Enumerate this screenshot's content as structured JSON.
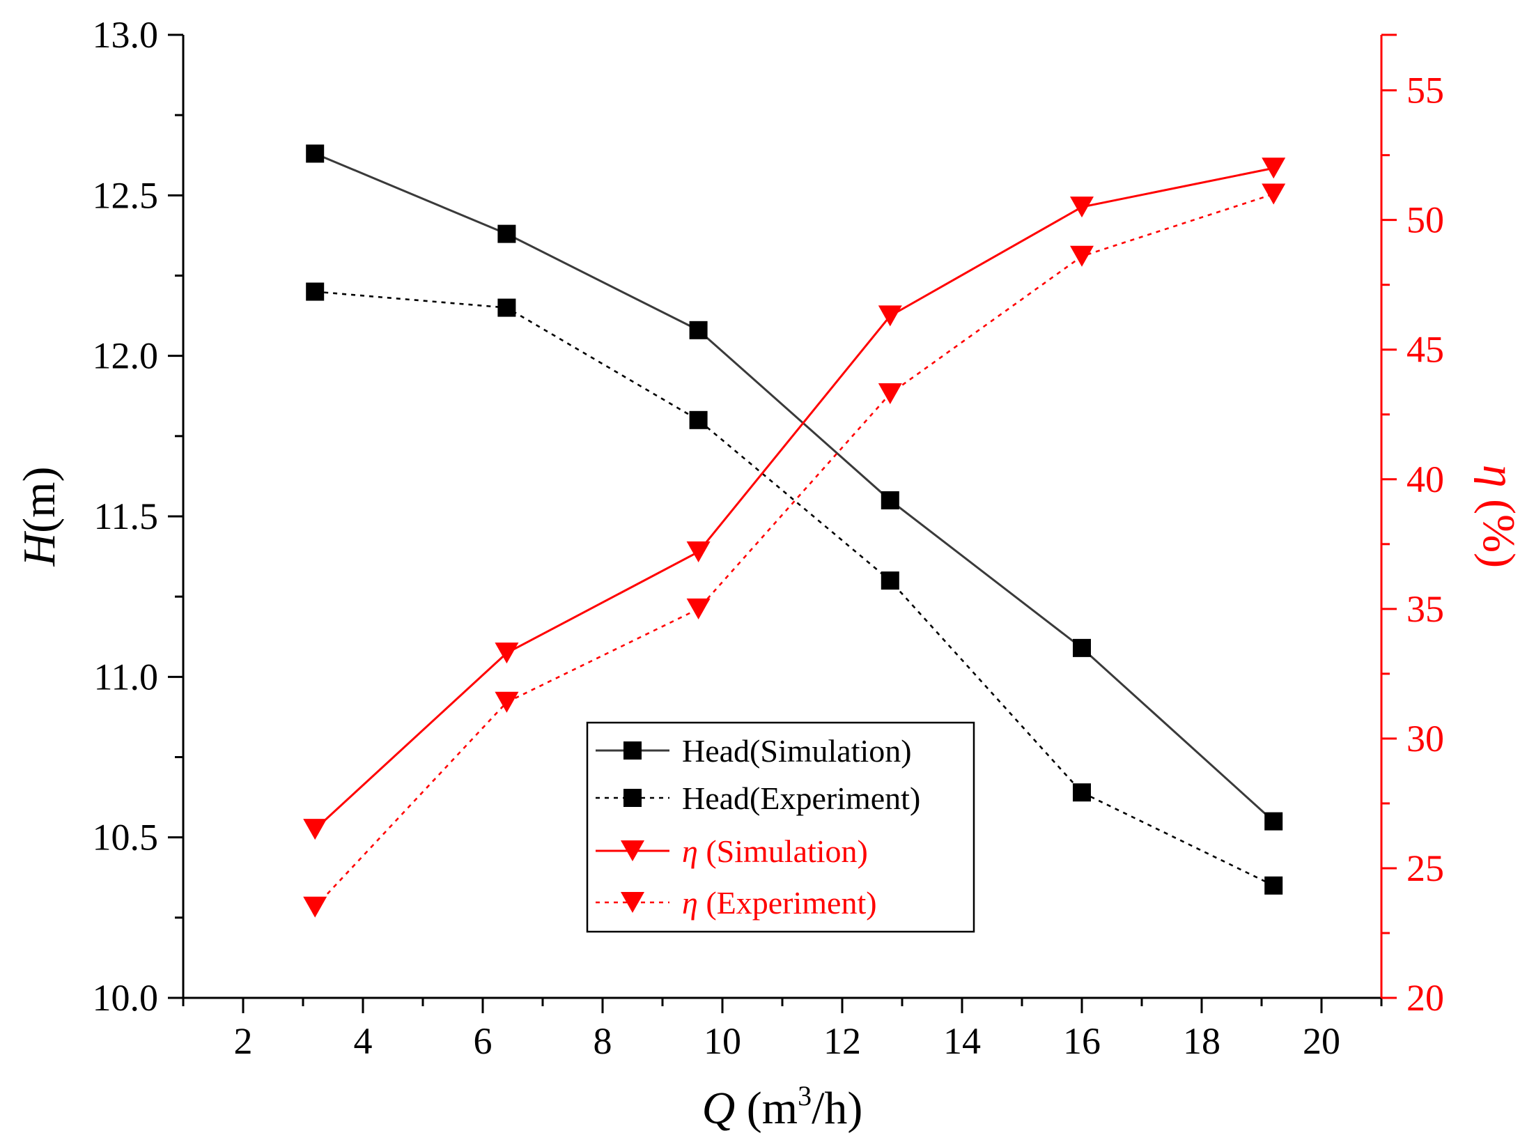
{
  "chart_data": {
    "type": "line",
    "x_label": {
      "prefix": "",
      "var": "Q",
      "unit_before_sup": " (m",
      "unit_sup": "3",
      "unit_after_sup": "/h)"
    },
    "y_left_label": {
      "var": "H",
      "unit": "(m)"
    },
    "y_right_label": {
      "var": "η",
      "unit": " (%)"
    },
    "xlim": [
      1,
      21
    ],
    "ylim_left": [
      10.0,
      13.0
    ],
    "ylim_right": [
      20,
      57.14
    ],
    "x_ticks": [
      2,
      4,
      6,
      8,
      10,
      12,
      14,
      16,
      18,
      20
    ],
    "y_left_ticks": [
      "10.0",
      "10.5",
      "11.0",
      "11.5",
      "12.0",
      "12.5",
      "13.0"
    ],
    "y_right_ticks": [
      "20",
      "25",
      "30",
      "35",
      "40",
      "45",
      "50",
      "55"
    ],
    "x": [
      3.2,
      6.4,
      9.6,
      12.8,
      16.0,
      19.2
    ],
    "series": [
      {
        "name": "Head(Simulation)",
        "legend_prefix": "",
        "legend_text": "Head(Simulation)",
        "axis": "left",
        "marker": "square",
        "line": "solid",
        "color": "#3a3a3a",
        "marker_color": "#000000",
        "values": [
          12.63,
          12.38,
          12.08,
          11.55,
          11.09,
          10.55
        ]
      },
      {
        "name": "Head(Experiment)",
        "legend_prefix": "",
        "legend_text": "Head(Experiment)",
        "axis": "left",
        "marker": "square",
        "line": "dotted",
        "color": "#000000",
        "marker_color": "#000000",
        "values": [
          12.2,
          12.15,
          11.8,
          11.3,
          10.64,
          10.35
        ]
      },
      {
        "name": "η (Simulation)",
        "legend_prefix": "η",
        "legend_text": " (Simulation)",
        "axis": "right",
        "marker": "triangle-down",
        "line": "solid",
        "color": "#ff0000",
        "marker_color": "#ff0000",
        "values": [
          26.5,
          33.3,
          37.2,
          46.3,
          50.5,
          52.0
        ]
      },
      {
        "name": "η (Experiment)",
        "legend_prefix": "η",
        "legend_text": " (Experiment)",
        "axis": "right",
        "marker": "triangle-down",
        "line": "dotted",
        "color": "#ff0000",
        "marker_color": "#ff0000",
        "values": [
          23.5,
          31.4,
          35.0,
          43.3,
          48.6,
          51.0
        ]
      }
    ],
    "legend_position": "bottom-center",
    "colors": {
      "left_axis": "#000000",
      "right_axis": "#ff0000"
    }
  }
}
